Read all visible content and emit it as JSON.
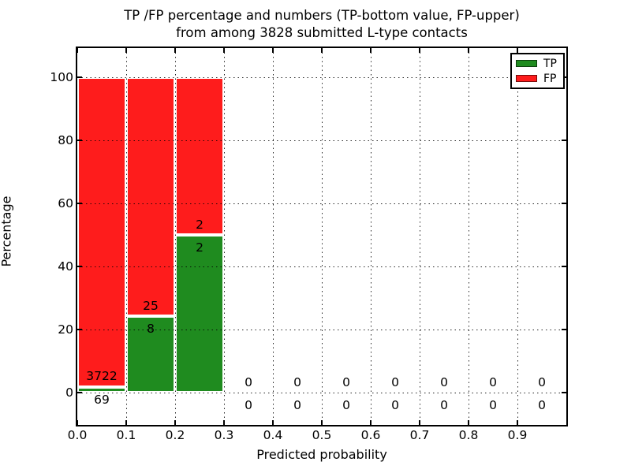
{
  "chart_data": {
    "type": "bar",
    "stacked": true,
    "title": "TP /FP percentage and numbers (TP-bottom value, FP-upper)",
    "title_line2": "from among 3828 submitted L-type contacts",
    "xlabel": "Predicted probability",
    "ylabel": "Percentage",
    "x_tick_labels": [
      "0.0",
      "0.1",
      "0.2",
      "0.3",
      "0.4",
      "0.5",
      "0.6",
      "0.7",
      "0.8",
      "0.9"
    ],
    "y_ticks": [
      0,
      20,
      40,
      60,
      80,
      100
    ],
    "xlim": [
      0.0,
      1.0
    ],
    "ylim": [
      -10.5,
      109.5
    ],
    "grid": "dotted",
    "legend": {
      "position": "upper right",
      "entries": [
        {
          "label": "TP",
          "color": "#1f8b1f"
        },
        {
          "label": "FP",
          "color": "#fe1c1c"
        }
      ]
    },
    "bins": [
      {
        "range": [
          0.0,
          0.1
        ],
        "tp": 69,
        "fp": 3722,
        "tp_pct": 1.82,
        "fp_pct": 98.18
      },
      {
        "range": [
          0.1,
          0.2
        ],
        "tp": 8,
        "fp": 25,
        "tp_pct": 24.24,
        "fp_pct": 75.76
      },
      {
        "range": [
          0.2,
          0.3
        ],
        "tp": 2,
        "fp": 2,
        "tp_pct": 50.0,
        "fp_pct": 50.0
      },
      {
        "range": [
          0.3,
          0.4
        ],
        "tp": 0,
        "fp": 0,
        "tp_pct": 0,
        "fp_pct": 0
      },
      {
        "range": [
          0.4,
          0.5
        ],
        "tp": 0,
        "fp": 0,
        "tp_pct": 0,
        "fp_pct": 0
      },
      {
        "range": [
          0.5,
          0.6
        ],
        "tp": 0,
        "fp": 0,
        "tp_pct": 0,
        "fp_pct": 0
      },
      {
        "range": [
          0.6,
          0.7
        ],
        "tp": 0,
        "fp": 0,
        "tp_pct": 0,
        "fp_pct": 0
      },
      {
        "range": [
          0.7,
          0.8
        ],
        "tp": 0,
        "fp": 0,
        "tp_pct": 0,
        "fp_pct": 0
      },
      {
        "range": [
          0.8,
          0.9
        ],
        "tp": 0,
        "fp": 0,
        "tp_pct": 0,
        "fp_pct": 0
      },
      {
        "range": [
          0.9,
          1.0
        ],
        "tp": 0,
        "fp": 0,
        "tp_pct": 0,
        "fp_pct": 0
      }
    ]
  },
  "colors": {
    "tp": "#1f8b1f",
    "fp": "#fe1c1c",
    "grid": "#000000",
    "text": "#000000",
    "background": "#ffffff"
  }
}
